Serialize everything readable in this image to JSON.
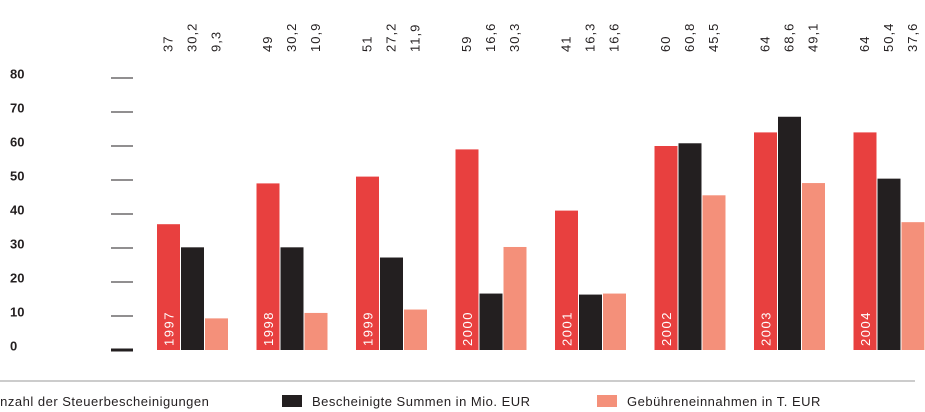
{
  "chart_data": {
    "type": "bar",
    "categories": [
      "1997",
      "1998",
      "1999",
      "2000",
      "2001",
      "2002",
      "2003",
      "2004"
    ],
    "series": [
      {
        "name": "Anzahl der Steuerbescheinigungen",
        "color": "#e8403f",
        "values": [
          37,
          49,
          51,
          59,
          41,
          60,
          64,
          64
        ],
        "value_labels": [
          "37",
          "49",
          "51",
          "59",
          "41",
          "60",
          "64",
          "64"
        ]
      },
      {
        "name": "Bescheinigte Summen in Mio. EUR",
        "color": "#231f20",
        "values": [
          30.2,
          30.2,
          27.2,
          16.6,
          16.3,
          60.8,
          68.6,
          50.4
        ],
        "value_labels": [
          "30,2",
          "30,2",
          "27,2",
          "16,6",
          "16,3",
          "60,8",
          "68,6",
          "50,4"
        ]
      },
      {
        "name": "Gebühreneinnahmen in T. EUR",
        "color": "#f4907a",
        "values": [
          9.3,
          10.9,
          11.9,
          30.3,
          16.6,
          45.5,
          49.1,
          37.6
        ],
        "value_labels": [
          "9,3",
          "10,9",
          "11,9",
          "30,3",
          "16,6",
          "45,5",
          "49,1",
          "37,6"
        ]
      }
    ],
    "ylim": [
      0,
      80
    ],
    "yticks": [
      0,
      10,
      20,
      30,
      40,
      50,
      60,
      70,
      80
    ],
    "grid": false
  }
}
